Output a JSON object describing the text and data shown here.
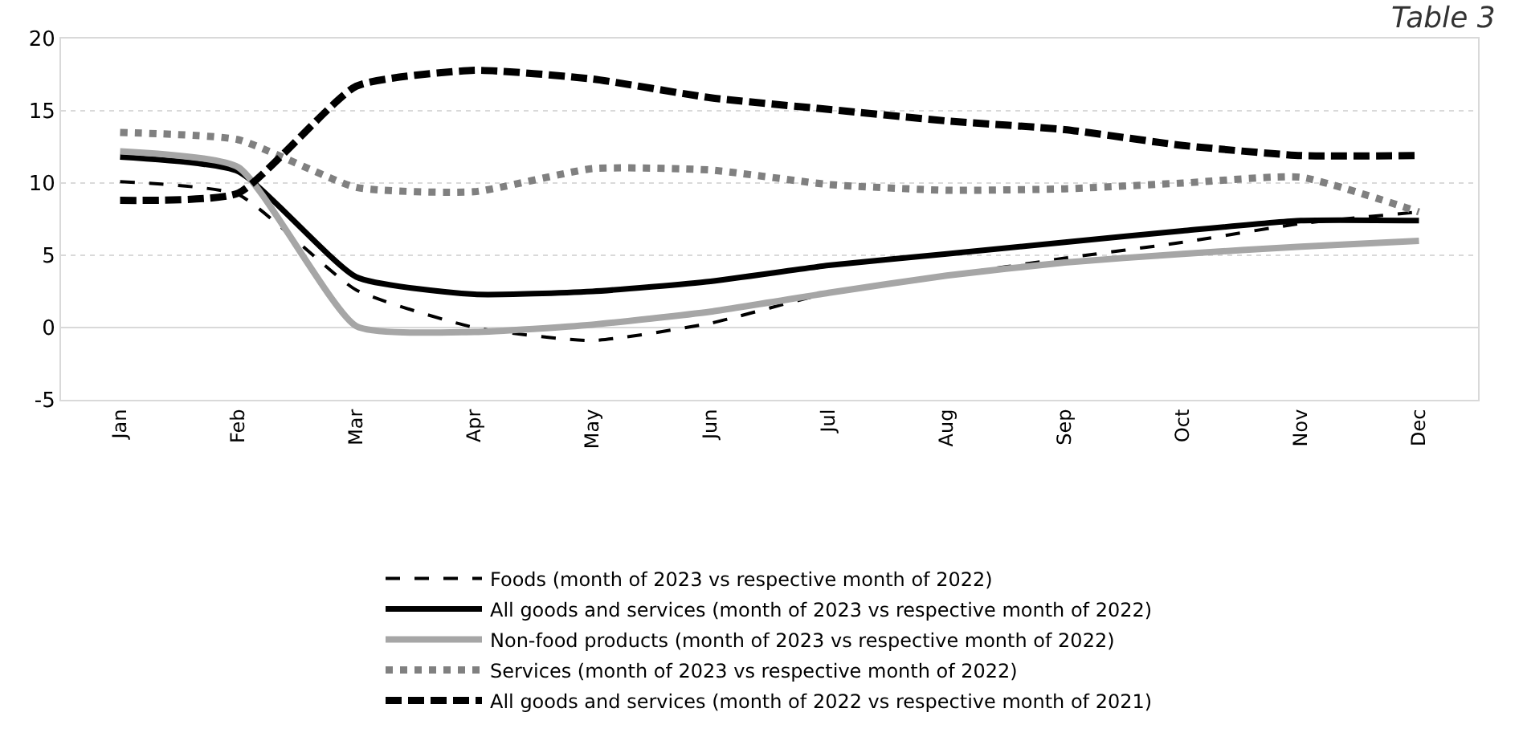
{
  "chart_data": {
    "type": "line",
    "categories": [
      "Jan",
      "Feb",
      "Mar",
      "Apr",
      "May",
      "Jun",
      "Jul",
      "Aug",
      "Sep",
      "Oct",
      "Nov",
      "Dec"
    ],
    "series": [
      {
        "name": "Foods (month of 2023 vs respective month of 2022)",
        "color": "#000000",
        "line_style": "dashed",
        "values": [
          10.1,
          9.2,
          2.6,
          0.0,
          -0.9,
          0.3,
          2.4,
          3.6,
          4.8,
          5.9,
          7.2,
          8.0
        ]
      },
      {
        "name": "All goods and services (month of 2023 vs respective month of 2022)",
        "color": "#000000",
        "line_style": "solid",
        "values": [
          11.8,
          10.8,
          3.5,
          2.3,
          2.5,
          3.2,
          4.3,
          5.1,
          5.9,
          6.7,
          7.4,
          7.4
        ]
      },
      {
        "name": "Non-food products (month of 2023 vs respective month of 2022)",
        "color": "#a6a6a6",
        "line_style": "solid",
        "values": [
          12.2,
          11.1,
          0.1,
          -0.3,
          0.2,
          1.1,
          2.4,
          3.6,
          4.5,
          5.1,
          5.6,
          6.0
        ]
      },
      {
        "name": "Services (month of 2023 vs respective month of 2022)",
        "color": "#808080",
        "line_style": "dotted",
        "values": [
          13.5,
          13.0,
          9.7,
          9.4,
          11.0,
          10.9,
          9.9,
          9.5,
          9.6,
          10.0,
          10.4,
          8.0
        ]
      },
      {
        "name": "All goods and services (month of 2022 vs respective month of 2021)",
        "color": "#000000",
        "line_style": "longdash",
        "values": [
          8.8,
          9.3,
          16.7,
          17.8,
          17.2,
          15.9,
          15.1,
          14.3,
          13.7,
          12.6,
          11.9,
          11.9
        ]
      }
    ],
    "ylim": [
      -5,
      20
    ],
    "yticks": [
      -5,
      0,
      5,
      10,
      15,
      20
    ],
    "grid": "y",
    "legend": "bottom",
    "marker": "none",
    "annotations": [
      "Table 3"
    ]
  }
}
